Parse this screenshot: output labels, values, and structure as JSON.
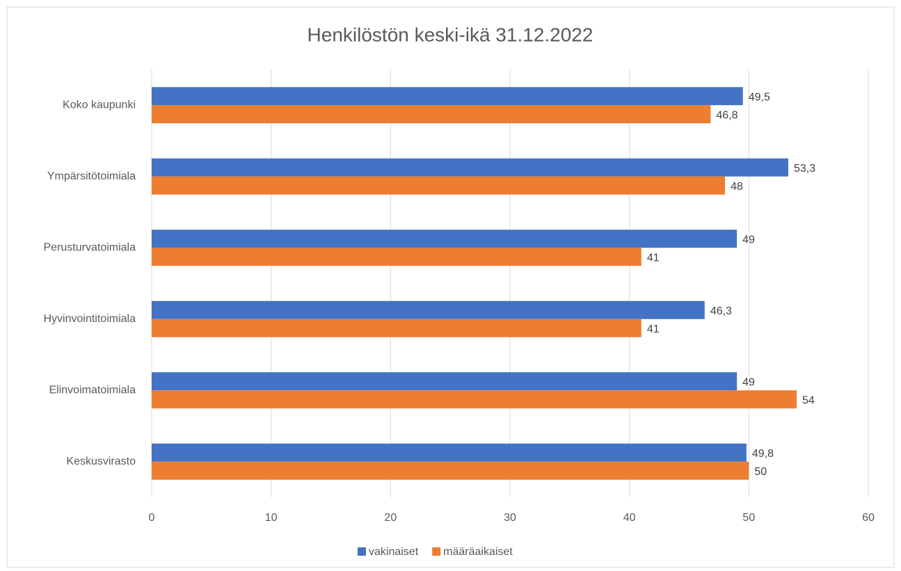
{
  "chart_data": {
    "type": "hbar",
    "title": "Henkilöstön keski-ikä 31.12.2022",
    "categories": [
      "Koko kaupunki",
      "Ympärsitötoimiala",
      "Perusturvatoimiala",
      "Hyvinvointitoimiala",
      "Elinvoimatoimiala",
      "Keskusvirasto"
    ],
    "series": [
      {
        "name": "vakinaiset",
        "color": "#4472c4",
        "values": [
          49.5,
          53.3,
          49,
          46.3,
          49,
          49.8
        ],
        "value_labels": [
          "49,5",
          "53,3",
          "49",
          "46,3",
          "49",
          "49,8"
        ]
      },
      {
        "name": "määräaikaiset",
        "color": "#ed7d31",
        "values": [
          46.8,
          48,
          41,
          41,
          54,
          50
        ],
        "value_labels": [
          "46,8",
          "48",
          "41",
          "41",
          "54",
          "50"
        ]
      }
    ],
    "xlim": [
      0,
      60
    ],
    "xticks": [
      0,
      10,
      20,
      30,
      40,
      50,
      60
    ],
    "grid": true,
    "legend": "bottom"
  }
}
